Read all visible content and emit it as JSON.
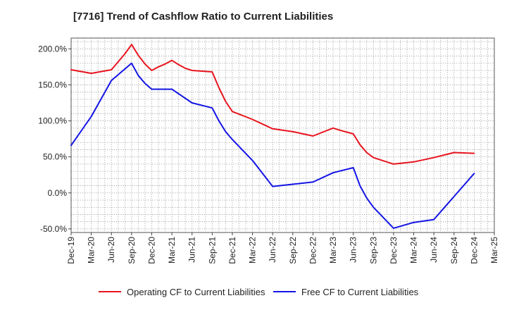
{
  "chart_data": {
    "type": "line",
    "title": "[7716]  Trend of Cashflow Ratio to Current Liabilities",
    "xlabel": "",
    "ylabel": "",
    "x_ticks": [
      "Dec-19",
      "Mar-20",
      "Jun-20",
      "Sep-20",
      "Dec-20",
      "Mar-21",
      "Jun-21",
      "Sep-21",
      "Dec-21",
      "Mar-22",
      "Jun-22",
      "Sep-22",
      "Dec-22",
      "Mar-23",
      "Jun-23",
      "Sep-23",
      "Dec-23",
      "Mar-24",
      "Jun-24",
      "Sep-24",
      "Dec-24",
      "Mar-25"
    ],
    "y_ticks": [
      "-50.0%",
      "0.0%",
      "50.0%",
      "100.0%",
      "150.0%",
      "200.0%"
    ],
    "ylim": [
      -55,
      215
    ],
    "grid": true,
    "legend_position": "bottom",
    "series": [
      {
        "name": "Operating CF to Current Liabilities",
        "color": "#e8141e",
        "x": [
          "2019-12",
          "2020-03",
          "2020-06",
          "2020-08",
          "2020-09",
          "2020-10",
          "2020-11",
          "2020-12",
          "2021-01",
          "2021-02",
          "2021-03",
          "2021-04",
          "2021-05",
          "2021-06",
          "2021-09",
          "2021-10",
          "2021-11",
          "2021-12",
          "2022-03",
          "2022-06",
          "2022-09",
          "2022-12",
          "2023-03",
          "2023-04",
          "2023-06",
          "2023-07",
          "2023-08",
          "2023-09",
          "2023-12",
          "2024-03",
          "2024-06",
          "2024-09",
          "2024-12"
        ],
        "values": [
          171,
          166,
          171,
          193,
          206,
          191,
          179,
          170,
          175,
          179,
          184,
          178,
          173,
          170,
          168,
          146,
          127,
          113,
          102,
          89,
          85,
          79,
          90,
          87,
          82,
          67,
          56,
          49,
          40,
          43,
          49,
          56,
          55
        ]
      },
      {
        "name": "Free CF to Current Liabilities",
        "color": "#1414e6",
        "x": [
          "2019-12",
          "2020-03",
          "2020-06",
          "2020-09",
          "2020-10",
          "2020-11",
          "2020-12",
          "2021-03",
          "2021-06",
          "2021-09",
          "2021-10",
          "2021-11",
          "2021-12",
          "2022-03",
          "2022-06",
          "2022-09",
          "2022-12",
          "2023-03",
          "2023-06",
          "2023-07",
          "2023-08",
          "2023-09",
          "2023-12",
          "2024-03",
          "2024-06",
          "2024-09",
          "2024-12"
        ],
        "values": [
          66,
          106,
          156,
          180,
          163,
          152,
          144,
          144,
          125,
          118,
          100,
          85,
          74,
          45,
          9,
          12,
          15,
          28,
          35,
          10,
          -7,
          -20,
          -49,
          -41,
          -37,
          -5,
          27
        ]
      }
    ]
  }
}
